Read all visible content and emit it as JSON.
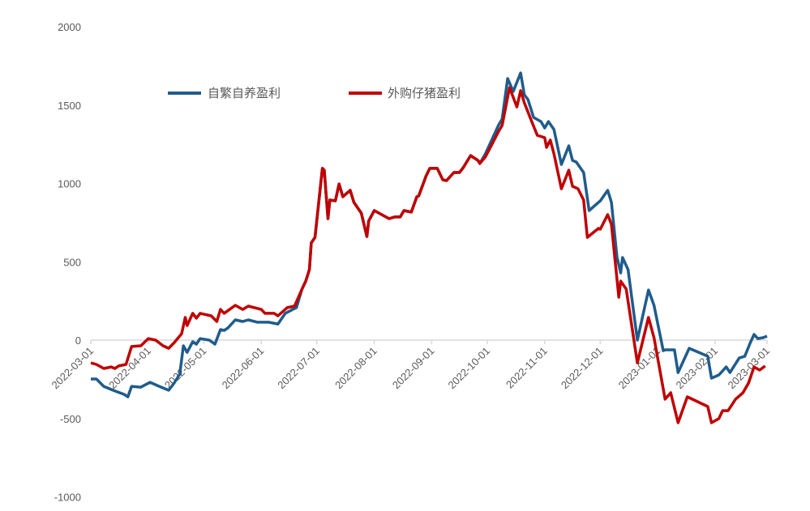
{
  "chart_data": {
    "type": "line",
    "title": "",
    "xlabel": "",
    "ylabel": "",
    "ylim": [
      -1000,
      2000
    ],
    "yticks": [
      "2000",
      "1500",
      "1000",
      "500",
      "0",
      "-500",
      "-1000"
    ],
    "ytick_values": [
      2000,
      1500,
      1000,
      500,
      0,
      -500,
      -1000
    ],
    "xlim": [
      "2022-03-01",
      "2023-03-01"
    ],
    "xticks": [
      "2022-03-01",
      "2022-04-01",
      "2022-05-01",
      "2022-06-01",
      "2022-07-01",
      "2022-08-01",
      "2022-09-01",
      "2022-10-01",
      "2022-11-01",
      "2022-12-01",
      "2023-01-01",
      "2023-02-01",
      "2023-03-01"
    ],
    "grid": false,
    "legend_placement": "top-left",
    "series": [
      {
        "name": "自繁自养盈利",
        "color": "#1F5C8C",
        "points": [
          [
            "2022-03-01",
            -248
          ],
          [
            "2022-03-04",
            -248
          ],
          [
            "2022-03-08",
            -295
          ],
          [
            "2022-03-13",
            -320
          ],
          [
            "2022-03-19",
            -346
          ],
          [
            "2022-03-21",
            -362
          ],
          [
            "2022-03-23",
            -295
          ],
          [
            "2022-03-28",
            -300
          ],
          [
            "2022-04-02",
            -269
          ],
          [
            "2022-04-07",
            -295
          ],
          [
            "2022-04-12",
            -320
          ],
          [
            "2022-04-15",
            -274
          ],
          [
            "2022-04-18",
            -217
          ],
          [
            "2022-04-20",
            -36
          ],
          [
            "2022-04-22",
            -78
          ],
          [
            "2022-04-25",
            -10
          ],
          [
            "2022-04-27",
            -26
          ],
          [
            "2022-04-29",
            10
          ],
          [
            "2022-05-04",
            0
          ],
          [
            "2022-05-07",
            -26
          ],
          [
            "2022-05-10",
            67
          ],
          [
            "2022-05-12",
            62
          ],
          [
            "2022-05-14",
            78
          ],
          [
            "2022-05-18",
            129
          ],
          [
            "2022-05-22",
            119
          ],
          [
            "2022-05-25",
            129
          ],
          [
            "2022-05-30",
            114
          ],
          [
            "2022-06-05",
            114
          ],
          [
            "2022-06-10",
            103
          ],
          [
            "2022-06-14",
            171
          ],
          [
            "2022-06-18",
            196
          ],
          [
            "2022-06-20",
            207
          ],
          [
            "2022-06-23",
            326
          ],
          [
            "2022-06-25",
            377
          ],
          [
            "2022-06-27",
            450
          ],
          [
            "2022-06-28",
            620
          ],
          [
            "2022-06-30",
            656
          ],
          [
            "2022-07-04",
            1096
          ],
          [
            "2022-07-05",
            1085
          ],
          [
            "2022-07-07",
            775
          ],
          [
            "2022-07-08",
            894
          ],
          [
            "2022-07-11",
            889
          ],
          [
            "2022-07-13",
            997
          ],
          [
            "2022-07-15",
            915
          ],
          [
            "2022-07-19",
            956
          ],
          [
            "2022-07-21",
            879
          ],
          [
            "2022-07-25",
            811
          ],
          [
            "2022-07-28",
            661
          ],
          [
            "2022-07-29",
            760
          ],
          [
            "2022-08-01",
            827
          ],
          [
            "2022-08-05",
            801
          ],
          [
            "2022-08-09",
            775
          ],
          [
            "2022-08-12",
            786
          ],
          [
            "2022-08-15",
            786
          ],
          [
            "2022-08-17",
            827
          ],
          [
            "2022-08-21",
            817
          ],
          [
            "2022-08-24",
            915
          ],
          [
            "2022-08-25",
            920
          ],
          [
            "2022-08-29",
            1049
          ],
          [
            "2022-08-31",
            1096
          ],
          [
            "2022-09-04",
            1096
          ],
          [
            "2022-09-07",
            1023
          ],
          [
            "2022-09-09",
            1018
          ],
          [
            "2022-09-13",
            1070
          ],
          [
            "2022-09-16",
            1070
          ],
          [
            "2022-09-18",
            1101
          ],
          [
            "2022-09-22",
            1178
          ],
          [
            "2022-09-26",
            1147
          ],
          [
            "2022-09-27",
            1127
          ],
          [
            "2022-09-30",
            1189
          ],
          [
            "2022-10-04",
            1292
          ],
          [
            "2022-10-07",
            1370
          ],
          [
            "2022-10-09",
            1411
          ],
          [
            "2022-10-12",
            1669
          ],
          [
            "2022-10-15",
            1587
          ],
          [
            "2022-10-19",
            1705
          ],
          [
            "2022-10-21",
            1566
          ],
          [
            "2022-10-23",
            1535
          ],
          [
            "2022-10-26",
            1421
          ],
          [
            "2022-10-30",
            1395
          ],
          [
            "2022-11-01",
            1354
          ],
          [
            "2022-11-03",
            1395
          ],
          [
            "2022-11-06",
            1344
          ],
          [
            "2022-11-10",
            1121
          ],
          [
            "2022-11-14",
            1240
          ],
          [
            "2022-11-16",
            1147
          ],
          [
            "2022-11-18",
            1137
          ],
          [
            "2022-11-22",
            1070
          ],
          [
            "2022-11-25",
            827
          ],
          [
            "2022-11-30",
            879
          ],
          [
            "2022-12-01",
            889
          ],
          [
            "2022-12-05",
            956
          ],
          [
            "2022-12-07",
            879
          ],
          [
            "2022-12-10",
            532
          ],
          [
            "2022-12-12",
            429
          ],
          [
            "2022-12-13",
            527
          ],
          [
            "2022-12-16",
            450
          ],
          [
            "2022-12-21",
            0
          ],
          [
            "2022-12-27",
            320
          ],
          [
            "2022-12-30",
            222
          ],
          [
            "2023-01-04",
            -67
          ],
          [
            "2023-01-05",
            -62
          ],
          [
            "2023-01-10",
            -62
          ],
          [
            "2023-01-12",
            -207
          ],
          [
            "2023-01-18",
            -52
          ],
          [
            "2023-01-28",
            -103
          ],
          [
            "2023-01-30",
            -243
          ],
          [
            "2023-02-03",
            -222
          ],
          [
            "2023-02-07",
            -171
          ],
          [
            "2023-02-09",
            -207
          ],
          [
            "2023-02-14",
            -114
          ],
          [
            "2023-02-17",
            -103
          ],
          [
            "2023-02-20",
            -16
          ],
          [
            "2023-02-22",
            36
          ],
          [
            "2023-02-24",
            10
          ],
          [
            "2023-02-27",
            16
          ],
          [
            "2023-03-01",
            26
          ]
        ]
      },
      {
        "name": "外购仔猪盈利",
        "color": "#C00000",
        "points": [
          [
            "2022-03-01",
            -145
          ],
          [
            "2022-03-04",
            -155
          ],
          [
            "2022-03-08",
            -181
          ],
          [
            "2022-03-12",
            -171
          ],
          [
            "2022-03-14",
            -181
          ],
          [
            "2022-03-16",
            -165
          ],
          [
            "2022-03-20",
            -155
          ],
          [
            "2022-03-23",
            -41
          ],
          [
            "2022-03-28",
            -36
          ],
          [
            "2022-04-01",
            10
          ],
          [
            "2022-04-05",
            0
          ],
          [
            "2022-04-09",
            -36
          ],
          [
            "2022-04-12",
            -52
          ],
          [
            "2022-04-15",
            -16
          ],
          [
            "2022-04-19",
            41
          ],
          [
            "2022-04-21",
            145
          ],
          [
            "2022-04-22",
            93
          ],
          [
            "2022-04-25",
            171
          ],
          [
            "2022-04-27",
            140
          ],
          [
            "2022-04-29",
            171
          ],
          [
            "2022-05-05",
            155
          ],
          [
            "2022-05-08",
            119
          ],
          [
            "2022-05-10",
            196
          ],
          [
            "2022-05-12",
            171
          ],
          [
            "2022-05-18",
            222
          ],
          [
            "2022-05-22",
            196
          ],
          [
            "2022-05-25",
            217
          ],
          [
            "2022-06-01",
            196
          ],
          [
            "2022-06-03",
            171
          ],
          [
            "2022-06-08",
            171
          ],
          [
            "2022-06-10",
            155
          ],
          [
            "2022-06-15",
            207
          ],
          [
            "2022-06-19",
            217
          ],
          [
            "2022-06-23",
            326
          ],
          [
            "2022-06-25",
            377
          ],
          [
            "2022-06-27",
            450
          ],
          [
            "2022-06-28",
            620
          ],
          [
            "2022-06-30",
            656
          ],
          [
            "2022-07-04",
            1096
          ],
          [
            "2022-07-05",
            1085
          ],
          [
            "2022-07-07",
            775
          ],
          [
            "2022-07-08",
            894
          ],
          [
            "2022-07-11",
            889
          ],
          [
            "2022-07-13",
            997
          ],
          [
            "2022-07-15",
            915
          ],
          [
            "2022-07-19",
            956
          ],
          [
            "2022-07-21",
            879
          ],
          [
            "2022-07-25",
            811
          ],
          [
            "2022-07-28",
            661
          ],
          [
            "2022-07-29",
            760
          ],
          [
            "2022-08-01",
            827
          ],
          [
            "2022-08-05",
            801
          ],
          [
            "2022-08-09",
            775
          ],
          [
            "2022-08-12",
            786
          ],
          [
            "2022-08-15",
            786
          ],
          [
            "2022-08-17",
            827
          ],
          [
            "2022-08-21",
            817
          ],
          [
            "2022-08-24",
            915
          ],
          [
            "2022-08-25",
            920
          ],
          [
            "2022-08-29",
            1049
          ],
          [
            "2022-08-31",
            1096
          ],
          [
            "2022-09-04",
            1096
          ],
          [
            "2022-09-07",
            1023
          ],
          [
            "2022-09-09",
            1018
          ],
          [
            "2022-09-13",
            1070
          ],
          [
            "2022-09-16",
            1070
          ],
          [
            "2022-09-18",
            1101
          ],
          [
            "2022-09-22",
            1178
          ],
          [
            "2022-09-26",
            1147
          ],
          [
            "2022-09-27",
            1127
          ],
          [
            "2022-09-30",
            1170
          ],
          [
            "2022-10-04",
            1260
          ],
          [
            "2022-10-07",
            1330
          ],
          [
            "2022-10-09",
            1370
          ],
          [
            "2022-10-13",
            1612
          ],
          [
            "2022-10-17",
            1488
          ],
          [
            "2022-10-19",
            1592
          ],
          [
            "2022-10-21",
            1514
          ],
          [
            "2022-10-25",
            1395
          ],
          [
            "2022-10-28",
            1307
          ],
          [
            "2022-11-01",
            1292
          ],
          [
            "2022-11-02",
            1230
          ],
          [
            "2022-11-04",
            1277
          ],
          [
            "2022-11-06",
            1189
          ],
          [
            "2022-11-10",
            966
          ],
          [
            "2022-11-14",
            1085
          ],
          [
            "2022-11-16",
            982
          ],
          [
            "2022-11-19",
            966
          ],
          [
            "2022-11-22",
            894
          ],
          [
            "2022-11-24",
            656
          ],
          [
            "2022-11-30",
            713
          ],
          [
            "2022-12-01",
            708
          ],
          [
            "2022-12-05",
            801
          ],
          [
            "2022-12-07",
            739
          ],
          [
            "2022-12-11",
            274
          ],
          [
            "2022-12-12",
            377
          ],
          [
            "2022-12-15",
            326
          ],
          [
            "2022-12-21",
            -145
          ],
          [
            "2022-12-27",
            145
          ],
          [
            "2022-12-30",
            16
          ],
          [
            "2023-01-05",
            -377
          ],
          [
            "2023-01-08",
            -336
          ],
          [
            "2023-01-12",
            -527
          ],
          [
            "2023-01-17",
            -362
          ],
          [
            "2023-01-28",
            -424
          ],
          [
            "2023-01-30",
            -527
          ],
          [
            "2023-02-03",
            -501
          ],
          [
            "2023-02-05",
            -450
          ],
          [
            "2023-02-08",
            -450
          ],
          [
            "2023-02-12",
            -377
          ],
          [
            "2023-02-16",
            -336
          ],
          [
            "2023-02-19",
            -274
          ],
          [
            "2023-02-22",
            -171
          ],
          [
            "2023-02-25",
            -191
          ],
          [
            "2023-02-28",
            -165
          ]
        ]
      }
    ]
  }
}
